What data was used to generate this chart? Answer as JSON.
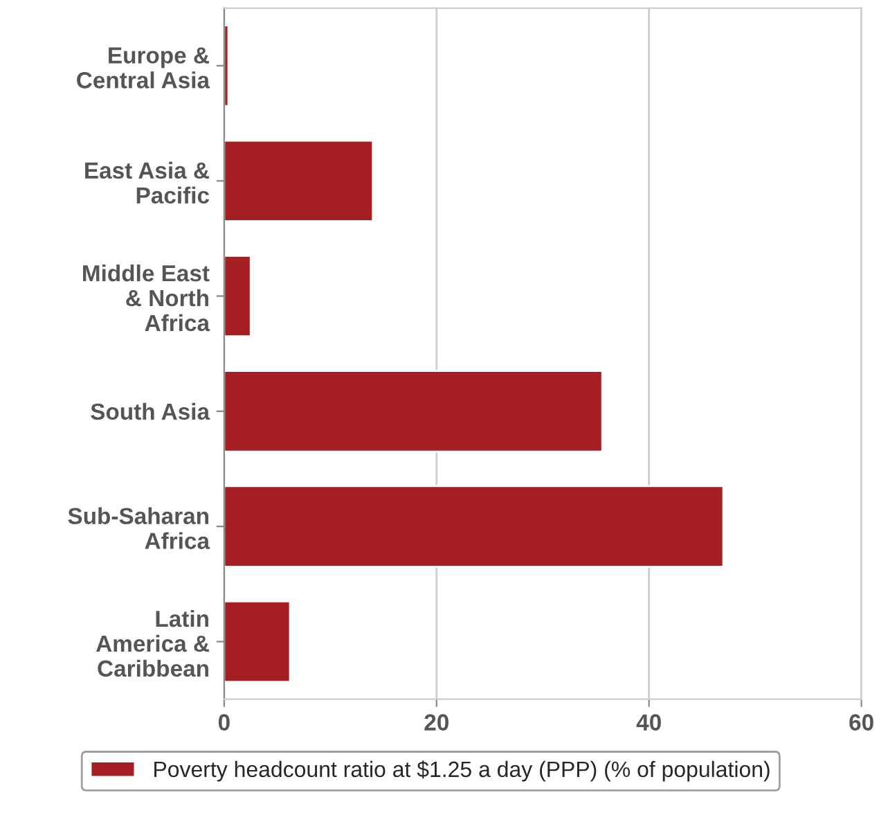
{
  "chart_data": {
    "type": "bar",
    "orientation": "horizontal",
    "categories": [
      "Europe &\nCentral Asia",
      "East Asia &\nPacific",
      "Middle East\n& North\nAfrica",
      "South Asia",
      "Sub-Saharan\nAfrica",
      "Latin\nAmerica &\nCaribbean"
    ],
    "series": [
      {
        "name": "Poverty headcount ratio at $1.25 a day (PPP) (% of population)",
        "color": "#a51f22",
        "values": [
          0.4,
          14.0,
          2.5,
          35.6,
          47.0,
          6.2
        ]
      }
    ],
    "xlim": [
      0,
      60
    ],
    "xticks": [
      0,
      20,
      40,
      60
    ],
    "grid": "x",
    "legend": "bottom"
  }
}
